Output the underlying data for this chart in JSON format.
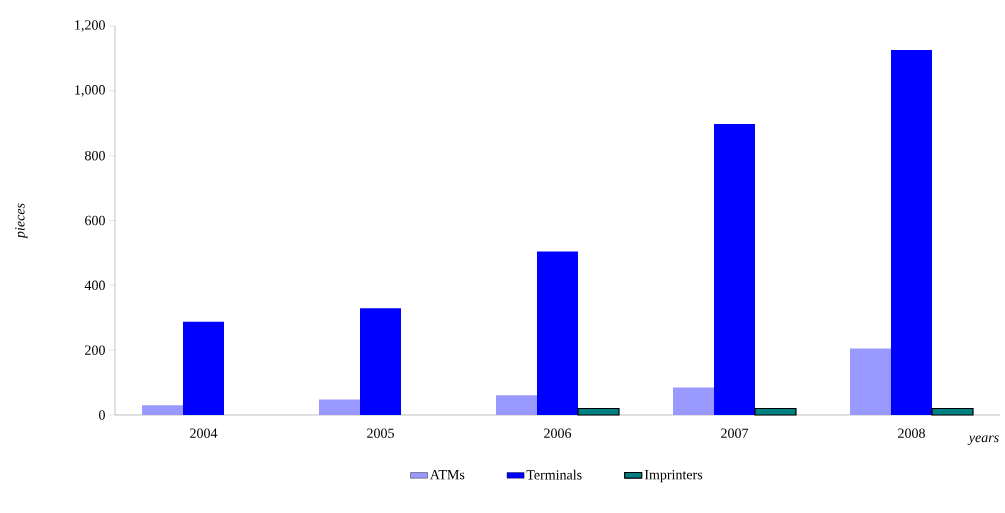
{
  "chart_data": {
    "type": "bar",
    "xlabel": "years",
    "ylabel": "pieces",
    "categories": [
      "2004",
      "2005",
      "2006",
      "2007",
      "2008"
    ],
    "series": [
      {
        "name": "ATMs",
        "color": "#9999ff",
        "values": [
          30,
          48,
          61,
          85,
          205
        ]
      },
      {
        "name": "Terminals",
        "color": "#0000ff",
        "values": [
          288,
          329,
          504,
          898,
          1126
        ]
      },
      {
        "name": "Imprinters",
        "color": "#008080",
        "values": [
          null,
          null,
          20,
          20,
          20
        ]
      }
    ],
    "ylim": [
      0,
      1200
    ],
    "yticks": [
      0,
      200,
      400,
      600,
      800,
      {
        "value": 1000,
        "label": "1,000"
      },
      {
        "value": 1200,
        "label": "1,200"
      }
    ],
    "grid": false,
    "legend": "bottom"
  }
}
